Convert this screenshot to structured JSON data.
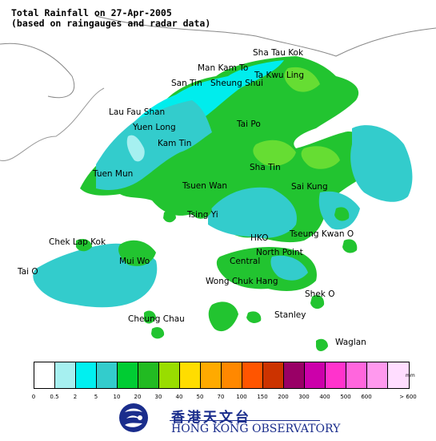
{
  "header": {
    "title": "Total Rainfall on 27-Apr-2005",
    "subtitle": "(based on raingauges and radar data)"
  },
  "places": [
    {
      "label": "Sha Tau Kok"
    },
    {
      "label": "Man Kam To"
    },
    {
      "label": "Ta Kwu Ling"
    },
    {
      "label": "San Tin"
    },
    {
      "label": "Sheung Shui"
    },
    {
      "label": "Lau Fau Shan"
    },
    {
      "label": "Yuen Long"
    },
    {
      "label": "Tai Po"
    },
    {
      "label": "Kam Tin"
    },
    {
      "label": "Tuen Mun"
    },
    {
      "label": "Sha Tin"
    },
    {
      "label": "Tsuen Wan"
    },
    {
      "label": "Sai Kung"
    },
    {
      "label": "Tsing Yi"
    },
    {
      "label": "Chek Lap Kok"
    },
    {
      "label": "HKO"
    },
    {
      "label": "Tseung Kwan O"
    },
    {
      "label": "Mui Wo"
    },
    {
      "label": "North Point"
    },
    {
      "label": "Central"
    },
    {
      "label": "Tai O"
    },
    {
      "label": "Wong Chuk Hang"
    },
    {
      "label": "Shek O"
    },
    {
      "label": "Stanley"
    },
    {
      "label": "Cheung Chau"
    },
    {
      "label": "Waglan"
    }
  ],
  "legend": {
    "unit": "mm",
    "colors": [
      "#ffffff",
      "#a6f0f0",
      "#00f0f0",
      "#33cccc",
      "#00cc33",
      "#22bb22",
      "#99dd00",
      "#ffdd00",
      "#ffaa00",
      "#ff8800",
      "#ff5500",
      "#cc3300",
      "#990066",
      "#cc00aa",
      "#ff33cc",
      "#ff66dd",
      "#ff99ee",
      "#ffddff"
    ],
    "ticks": [
      "0",
      "0.5",
      "2",
      "5",
      "10",
      "20",
      "30",
      "40",
      "50",
      "70",
      "100",
      "150",
      "200",
      "300",
      "400",
      "500",
      "600",
      "> 600"
    ]
  },
  "logo": {
    "chinese": "香港天文台",
    "english": "HONG KONG OBSERVATORY"
  }
}
